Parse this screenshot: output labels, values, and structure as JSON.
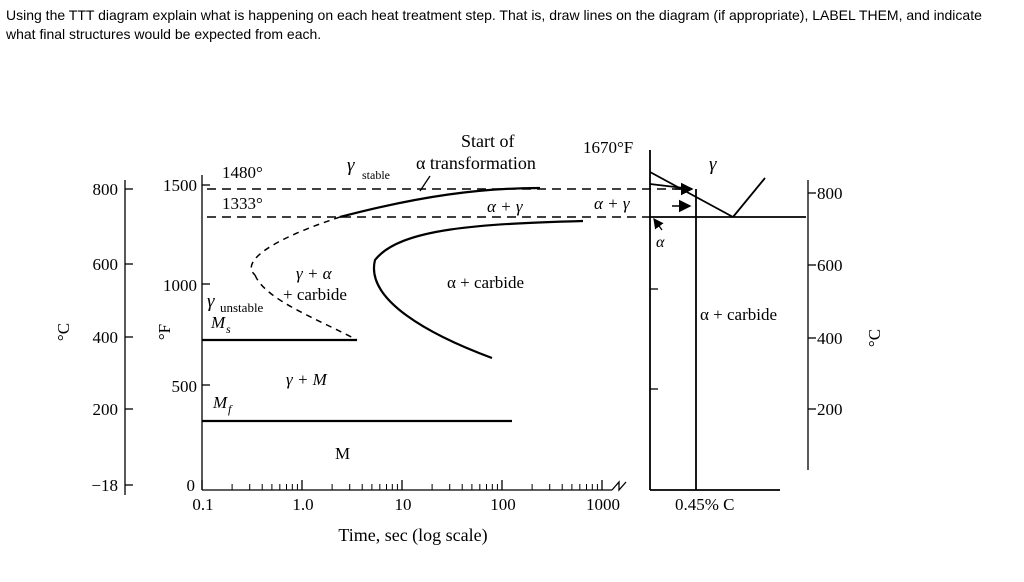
{
  "question": "Using the TTT diagram explain what is happening on each heat treatment step.  That is, draw lines on the diagram (if appropriate), LABEL THEM, and indicate what final structures would be expected from each.",
  "ttt": {
    "axis_c_unit": "°C",
    "axis_f_unit": "°F",
    "celsius_ticks": [
      "800",
      "600",
      "400",
      "200",
      "−18"
    ],
    "fahrenheit_ticks": [
      "1500",
      "1000",
      "500",
      "0"
    ],
    "time_ticks": [
      "0.1",
      "1.0",
      "10",
      "100",
      "1000"
    ],
    "xlabel": "Time, sec (log scale)",
    "temp_1480": "1480°",
    "temp_1333": "1333°",
    "gamma_stable": "γ",
    "gamma_stable_sub": "stable",
    "gamma_unstable": "γ",
    "gamma_unstable_sub": "unstable",
    "ms": "M",
    "ms_sub": "s",
    "mf": "M",
    "mf_sub": "f",
    "start_line1": "Start of",
    "start_line2": "α transformation",
    "alpha_gamma": "α + γ",
    "gamma_alpha_1": "γ + α",
    "gamma_alpha_2": "+ carbide",
    "alpha_carbide": "α + carbide",
    "gamma_m": "γ + M",
    "m": "M"
  },
  "phase": {
    "temp_1670": "1670°F",
    "gamma": "γ",
    "alpha_gamma": "α + γ",
    "alpha": "α",
    "alpha_carbide": "α + carbide",
    "composition": "0.45% C",
    "axis_c_unit": "°C",
    "celsius_ticks": [
      "800",
      "600",
      "400",
      "200"
    ]
  }
}
